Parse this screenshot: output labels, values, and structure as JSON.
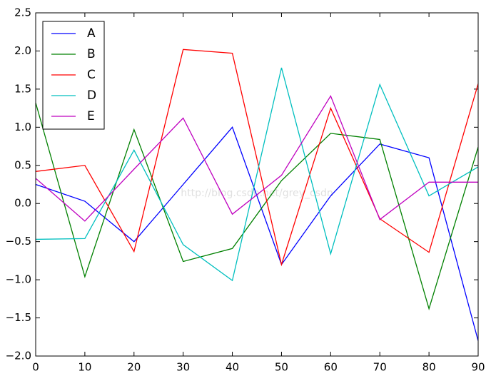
{
  "chart_data": {
    "type": "line",
    "watermark": "http://blog.csdn.net/grey_csdn",
    "x": [
      0,
      10,
      20,
      30,
      40,
      50,
      60,
      70,
      80,
      90
    ],
    "series": [
      {
        "name": "A",
        "color": "#0000ff",
        "values": [
          0.25,
          0.03,
          -0.5,
          0.25,
          1.0,
          -0.8,
          0.1,
          0.78,
          0.6,
          -1.8
        ]
      },
      {
        "name": "B",
        "color": "#008000",
        "values": [
          1.32,
          -0.96,
          0.97,
          -0.76,
          -0.59,
          0.3,
          0.92,
          0.84,
          -1.38,
          0.74
        ]
      },
      {
        "name": "C",
        "color": "#ff0000",
        "values": [
          0.42,
          0.5,
          -0.63,
          2.02,
          1.97,
          -0.8,
          1.25,
          -0.2,
          -0.64,
          1.57
        ]
      },
      {
        "name": "D",
        "color": "#00bfbf",
        "values": [
          -0.47,
          -0.46,
          0.7,
          -0.54,
          -1.01,
          1.78,
          -0.66,
          1.56,
          0.1,
          0.48
        ]
      },
      {
        "name": "E",
        "color": "#bf00bf",
        "values": [
          0.33,
          -0.23,
          0.45,
          1.12,
          -0.14,
          0.37,
          1.41,
          -0.21,
          0.28,
          0.28
        ]
      }
    ],
    "xlim": [
      0,
      90
    ],
    "xticks": [
      0,
      10,
      20,
      30,
      40,
      50,
      60,
      70,
      80,
      90
    ],
    "ylim": [
      -2,
      2.5
    ],
    "yticks": [
      {
        "value": -2,
        "label": "−2.0"
      },
      {
        "value": -1.5,
        "label": "−1.5"
      },
      {
        "value": -1,
        "label": "−1.0"
      },
      {
        "value": -0.5,
        "label": "−0.5"
      },
      {
        "value": 0,
        "label": "0.0"
      },
      {
        "value": 0.5,
        "label": "0.5"
      },
      {
        "value": 1,
        "label": "1.0"
      },
      {
        "value": 1.5,
        "label": "1.5"
      },
      {
        "value": 2,
        "label": "2.0"
      },
      {
        "value": 2.5,
        "label": "2.5"
      }
    ],
    "legend": "upper left"
  }
}
